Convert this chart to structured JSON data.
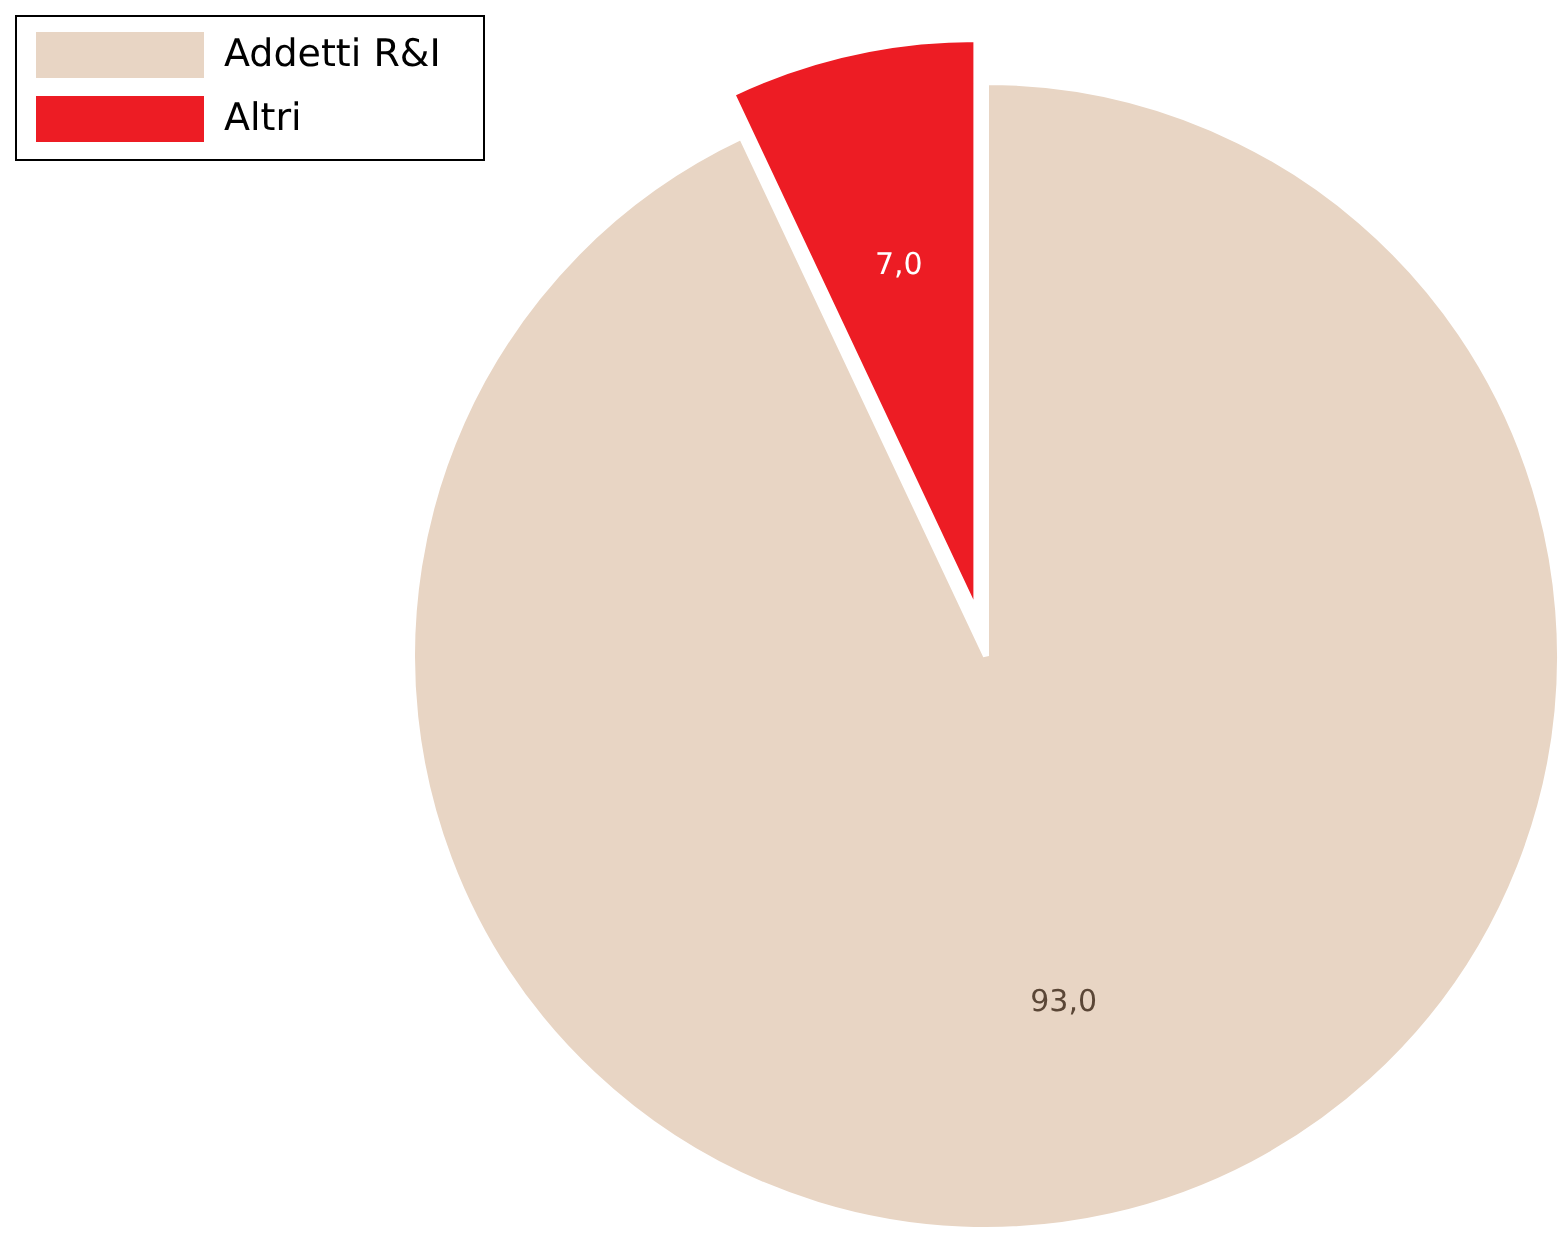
{
  "chart_data": {
    "type": "pie",
    "categories": [
      "Addetti R&I",
      "Altri"
    ],
    "values": [
      93.0,
      7.0
    ],
    "value_labels": [
      "93,0",
      "7,0"
    ],
    "colors": [
      "#e8d5c4",
      "#ed1c24"
    ],
    "legend": "top left"
  }
}
